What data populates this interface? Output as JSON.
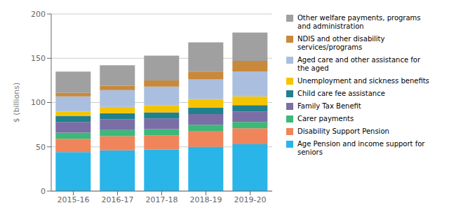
{
  "chart_data": {
    "type": "bar",
    "stacked": true,
    "ylabel": "$ (billions)",
    "categories": [
      "2015-16",
      "2016-17",
      "2017-18",
      "2018-19",
      "2019-20"
    ],
    "series": [
      {
        "name": "Age Pension and income support for\nseniors",
        "color": "#29B5E8",
        "values": [
          44,
          46,
          47,
          50,
          53
        ]
      },
      {
        "name": "Disability Support Pension",
        "color": "#F0845A",
        "values": [
          15,
          16,
          16,
          18,
          18
        ]
      },
      {
        "name": "Carer payments",
        "color": "#3CB878",
        "values": [
          7,
          7,
          7,
          7,
          7
        ]
      },
      {
        "name": "Family Tax Benefit",
        "color": "#7B6EA6",
        "values": [
          12,
          12,
          12,
          12,
          12
        ]
      },
      {
        "name": "Child care fee assistance",
        "color": "#21808D",
        "values": [
          7,
          7,
          7,
          7,
          7
        ]
      },
      {
        "name": "Unemployment and sickness benefits",
        "color": "#F5C400",
        "values": [
          5,
          7,
          8,
          10,
          10
        ]
      },
      {
        "name": "Aged care and other assistance for\nthe aged",
        "color": "#AABFDF",
        "values": [
          17,
          19,
          21,
          22,
          28
        ]
      },
      {
        "name": "NDIS and other disability\nservices/programs",
        "color": "#C8893A",
        "values": [
          4,
          5,
          7,
          9,
          12
        ]
      },
      {
        "name": "Other welfare payments, programs\nand administration",
        "color": "#A0A0A0",
        "values": [
          24,
          23,
          28,
          33,
          32
        ]
      }
    ],
    "ylim": [
      0,
      200
    ],
    "yticks": [
      0,
      50,
      100,
      150,
      200
    ],
    "grid": true,
    "legend": "right"
  }
}
